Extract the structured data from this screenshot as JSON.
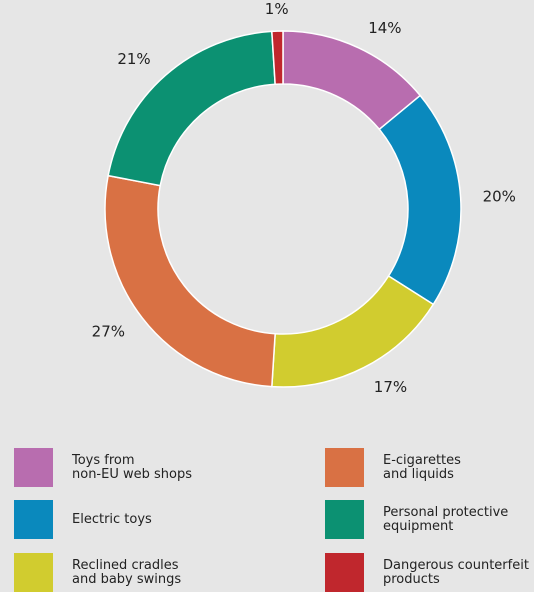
{
  "chart_data": {
    "type": "pie",
    "donut": true,
    "categories": [
      "Toys from\nnon-EU web shops",
      "Electric toys",
      "Reclined cradles\nand baby swings",
      "E-cigarettes\nand liquids",
      "Personal protective\nequipment",
      "Dangerous counterfeit\nproducts"
    ],
    "values": [
      14,
      20,
      17,
      27,
      21,
      1
    ],
    "value_labels": [
      "14%",
      "20%",
      "17%",
      "27%",
      "21%",
      "1%"
    ],
    "colors": [
      "#b86daf",
      "#0a89bd",
      "#d1cc2f",
      "#d97144",
      "#0c9172",
      "#c0272d"
    ],
    "legend_position": "bottom"
  }
}
